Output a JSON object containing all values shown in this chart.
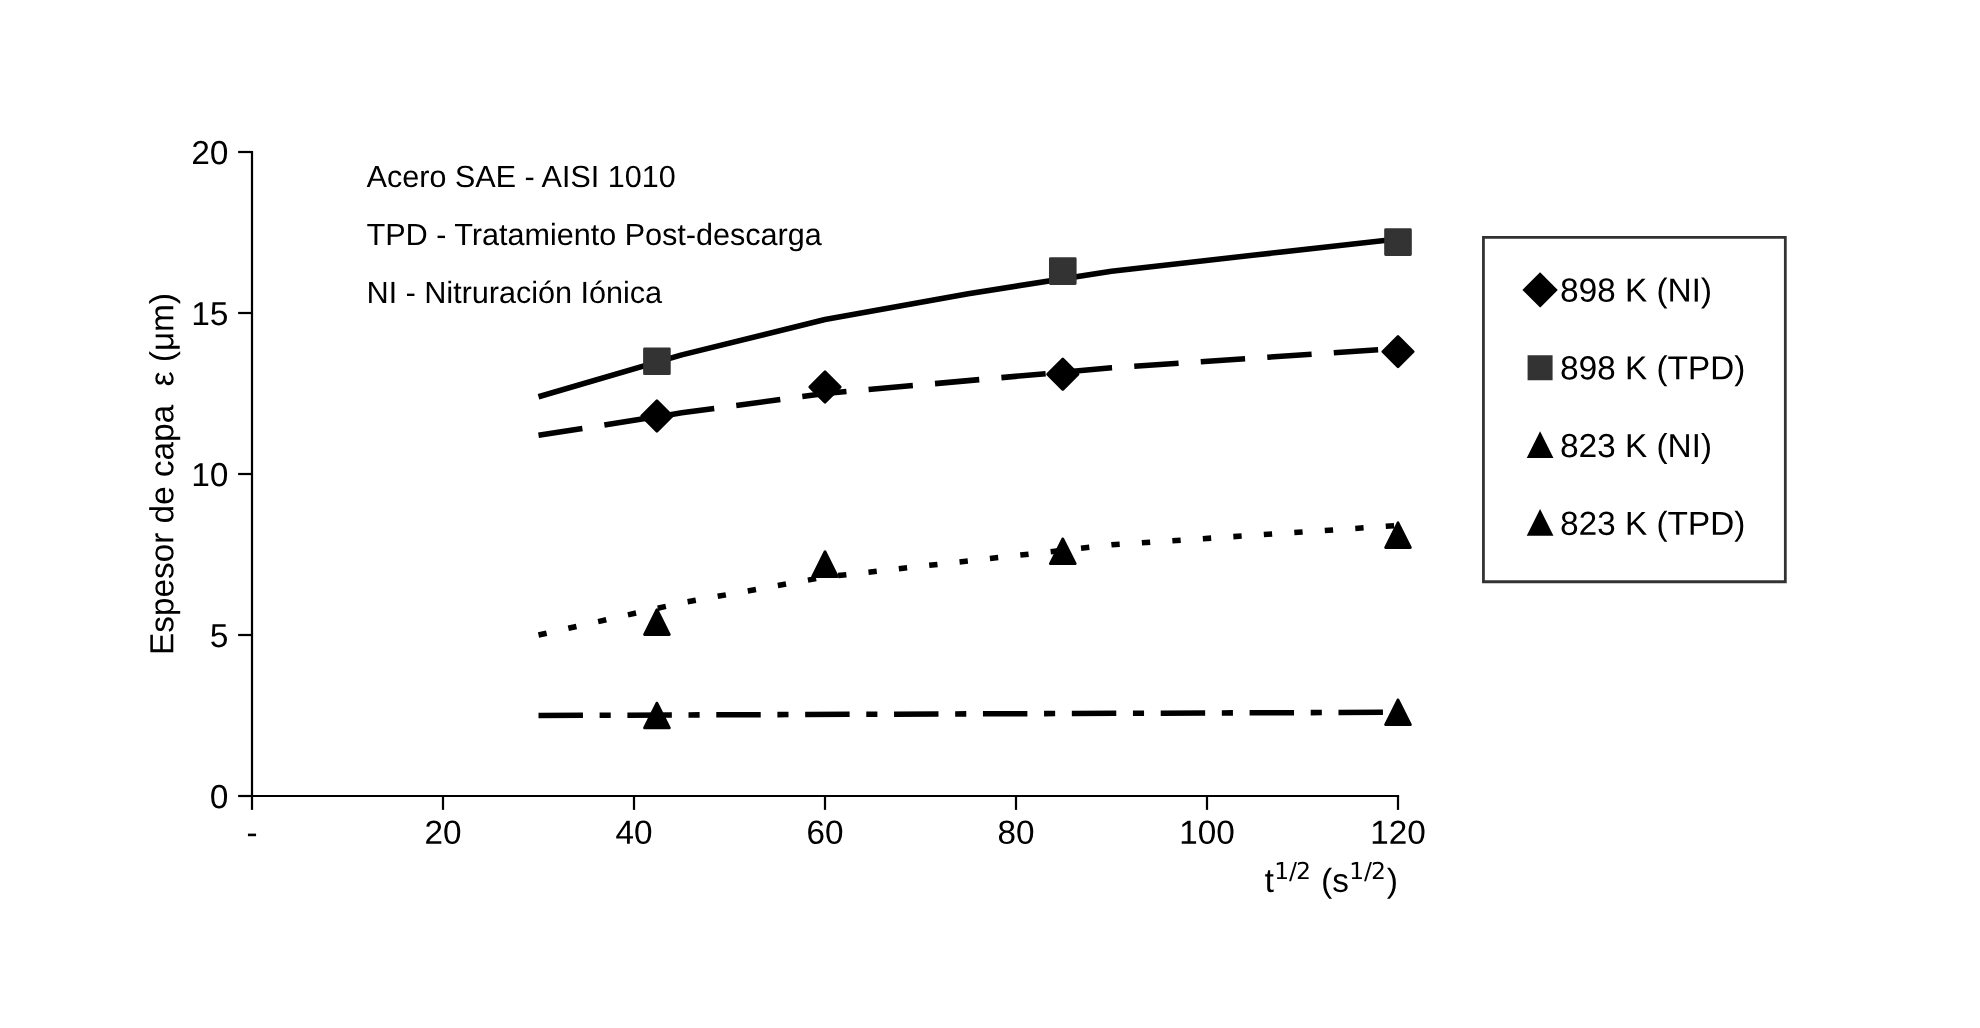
{
  "chart_data": {
    "type": "scatter",
    "xlabel": "t$^{1/2}$ (s$^{1/2}$)",
    "ylabel": "Espesor de capa  ε (μm)",
    "annotations": [
      "Acero SAE - AISI 1010",
      "TPD - Tratamiento Post-descarga",
      "NI - Nitruración Iónica"
    ],
    "xlim": [
      0,
      120
    ],
    "xticks": [
      {
        "value": 0,
        "label": "-"
      },
      20,
      40,
      60,
      80,
      100,
      120
    ],
    "ylim": [
      0,
      20
    ],
    "yticks": [
      0,
      5,
      10,
      15,
      20
    ],
    "grid": false,
    "legend": "right",
    "series": [
      {
        "name": "898 K (NI)",
        "color": "#000000",
        "marker": "diamond",
        "x": [
          42.4,
          60,
          84.9,
          120
        ],
        "values": [
          11.8,
          12.7,
          13.1,
          13.8
        ]
      },
      {
        "name": "898 K (TPD)",
        "color": "#333333",
        "marker": "square",
        "x": [
          42.4,
          84.9,
          120
        ],
        "values": [
          13.5,
          16.3,
          17.2
        ]
      },
      {
        "name": "823 K (NI)",
        "color": "#000000",
        "marker": "triangle",
        "x": [
          42.4,
          60,
          84.9,
          120
        ],
        "values": [
          5.4,
          7.2,
          7.6,
          8.1
        ]
      },
      {
        "name": "823 K (TPD)",
        "color": "#000000",
        "marker": "triangle",
        "x": [
          42.4,
          120
        ],
        "values": [
          2.5,
          2.6
        ]
      },
      {
        "type": "line",
        "color": "#000000",
        "line_style": "dashed",
        "x": [
          30,
          45,
          60,
          75,
          90,
          105,
          120
        ],
        "values": [
          11.2,
          11.9,
          12.5,
          12.9,
          13.3,
          13.6,
          13.9
        ]
      },
      {
        "type": "line",
        "color": "#000000",
        "line_style": "solid",
        "x": [
          30,
          45,
          60,
          75,
          90,
          105,
          120
        ],
        "values": [
          12.4,
          13.7,
          14.8,
          15.6,
          16.3,
          16.8,
          17.3
        ]
      },
      {
        "type": "line",
        "color": "#000000",
        "line_style": "dotted",
        "x": [
          30,
          45,
          60,
          75,
          90,
          105,
          120
        ],
        "values": [
          5.0,
          6.0,
          6.8,
          7.3,
          7.8,
          8.1,
          8.4
        ]
      },
      {
        "type": "line",
        "color": "#000000",
        "line_style": "dashdot",
        "x": [
          30,
          75,
          120
        ],
        "values": [
          2.5,
          2.55,
          2.6
        ]
      }
    ]
  }
}
